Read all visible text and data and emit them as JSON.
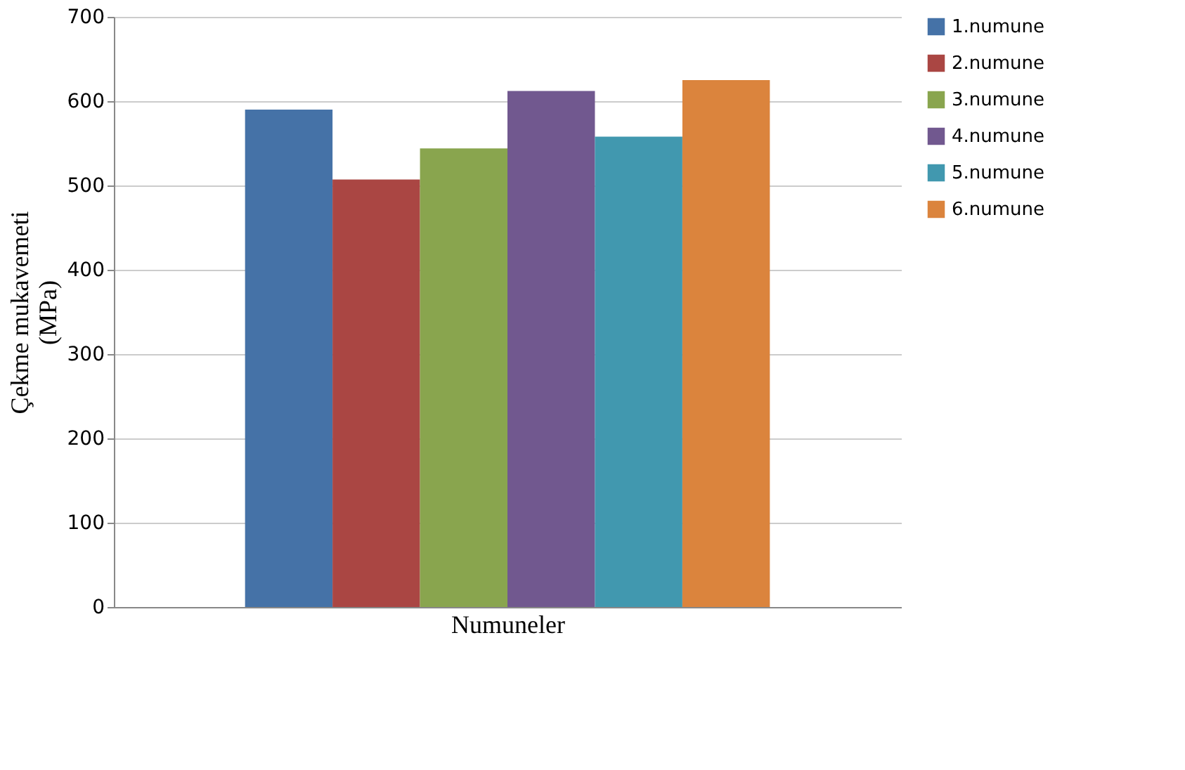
{
  "chart_data": {
    "type": "bar",
    "categories": [
      null
    ],
    "xlabel": "Numuneler",
    "ylabel": "Çekme mukavemeti\n(MPa)",
    "series": [
      {
        "name": "1.numune",
        "color": "#4572a7",
        "values": [
          590
        ]
      },
      {
        "name": "2.numune",
        "color": "#aa4643",
        "values": [
          507
        ]
      },
      {
        "name": "3.numune",
        "color": "#89a54e",
        "values": [
          544
        ]
      },
      {
        "name": "4.numune",
        "color": "#71588f",
        "values": [
          612
        ]
      },
      {
        "name": "5.numune",
        "color": "#4198af",
        "values": [
          558
        ]
      },
      {
        "name": "6.numune",
        "color": "#db843d",
        "values": [
          625
        ]
      }
    ],
    "ylim": [
      0,
      700
    ],
    "yticks": [
      0,
      100,
      200,
      300,
      400,
      500,
      600,
      700
    ],
    "grid": "y",
    "legend": "right"
  }
}
